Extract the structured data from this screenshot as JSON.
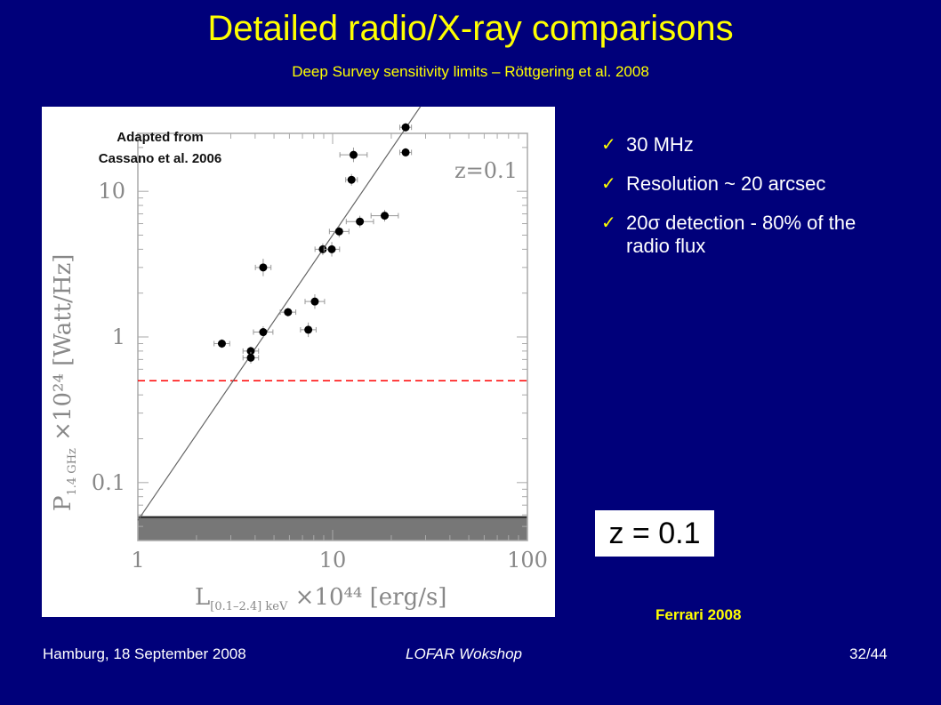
{
  "slide": {
    "title": "Detailed radio/X-ray comparisons",
    "subtitle": "Deep Survey sensitivity limits – Röttgering et al. 2008",
    "adapted_line1": "Adapted from",
    "adapted_line2": "Cassano et al. 2006",
    "bullets": [
      {
        "text": "30 MHz"
      },
      {
        "text": "Resolution ~ 20 arcsec"
      },
      {
        "prefix": "20",
        "sigma": "σ",
        "text": " detection - 80% of the radio flux"
      }
    ],
    "check_icon": "✓",
    "zbox": "z = 0.1",
    "credit": "Ferrari 2008",
    "footer": {
      "left": "Hamburg, 18 September 2008",
      "middle": "LOFAR Wokshop",
      "right": "32/44"
    },
    "colors": {
      "background": "#00007a",
      "title": "#ffff00",
      "threshold_line": "#ff0000",
      "shaded_region": "#777777"
    }
  },
  "chart_data": {
    "type": "scatter",
    "x_scale": "log",
    "y_scale": "log",
    "xlim": [
      1,
      100
    ],
    "ylim": [
      0.04,
      25
    ],
    "x_ticks": [
      "1",
      "10",
      "100"
    ],
    "y_ticks": [
      "0.1",
      "1",
      "10"
    ],
    "xlabel": "L[0.1–2.4] keV ×10⁴⁴ [erg/s]",
    "xlabel_main": "L",
    "xlabel_sub": "[0.1–2.4] keV",
    "xlabel_tail": " ×10⁴⁴ [erg/s]",
    "ylabel": "P1.4 GHz ×10²⁴ [Watt/Hz]",
    "ylabel_main": "P",
    "ylabel_sub": "1.4 GHz",
    "ylabel_tail": " ×10²⁴ [Watt/Hz]",
    "annotation": "z=0.1",
    "points": [
      {
        "x": 2.7,
        "y": 0.9,
        "xerr": 0.04,
        "yerr": 0.03
      },
      {
        "x": 3.8,
        "y": 0.8,
        "xerr": 0.04,
        "yerr": 0.03
      },
      {
        "x": 3.8,
        "y": 0.72,
        "xerr": 0.04,
        "yerr": 0.04
      },
      {
        "x": 4.4,
        "y": 3.0,
        "xerr": 0.04,
        "yerr": 0.06
      },
      {
        "x": 4.4,
        "y": 1.08,
        "xerr": 0.05,
        "yerr": 0.04
      },
      {
        "x": 5.9,
        "y": 1.48,
        "xerr": 0.04,
        "yerr": 0.03
      },
      {
        "x": 7.5,
        "y": 1.12,
        "xerr": 0.04,
        "yerr": 0.05
      },
      {
        "x": 8.1,
        "y": 1.75,
        "xerr": 0.05,
        "yerr": 0.05
      },
      {
        "x": 8.9,
        "y": 4.0,
        "xerr": 0.04,
        "yerr": 0.04
      },
      {
        "x": 9.9,
        "y": 4.0,
        "xerr": 0.04,
        "yerr": 0.05
      },
      {
        "x": 10.8,
        "y": 5.3,
        "xerr": 0.05,
        "yerr": 0.04
      },
      {
        "x": 12.5,
        "y": 12.0,
        "xerr": 0.03,
        "yerr": 0.04
      },
      {
        "x": 12.8,
        "y": 17.8,
        "xerr": 0.07,
        "yerr": 0.05
      },
      {
        "x": 13.8,
        "y": 6.2,
        "xerr": 0.07,
        "yerr": 0.04
      },
      {
        "x": 18.5,
        "y": 6.8,
        "xerr": 0.07,
        "yerr": 0.04
      },
      {
        "x": 23.7,
        "y": 27.5,
        "xerr": 0.03,
        "yerr": 0.03
      },
      {
        "x": 23.7,
        "y": 18.5,
        "xerr": 0.03,
        "yerr": 0.03
      }
    ],
    "fit_line": {
      "x": [
        1,
        30
      ],
      "y": [
        0.055,
        28
      ]
    },
    "threshold_y": 0.5,
    "shaded_band": {
      "y_low": 0.04,
      "y_high": 0.058
    }
  }
}
